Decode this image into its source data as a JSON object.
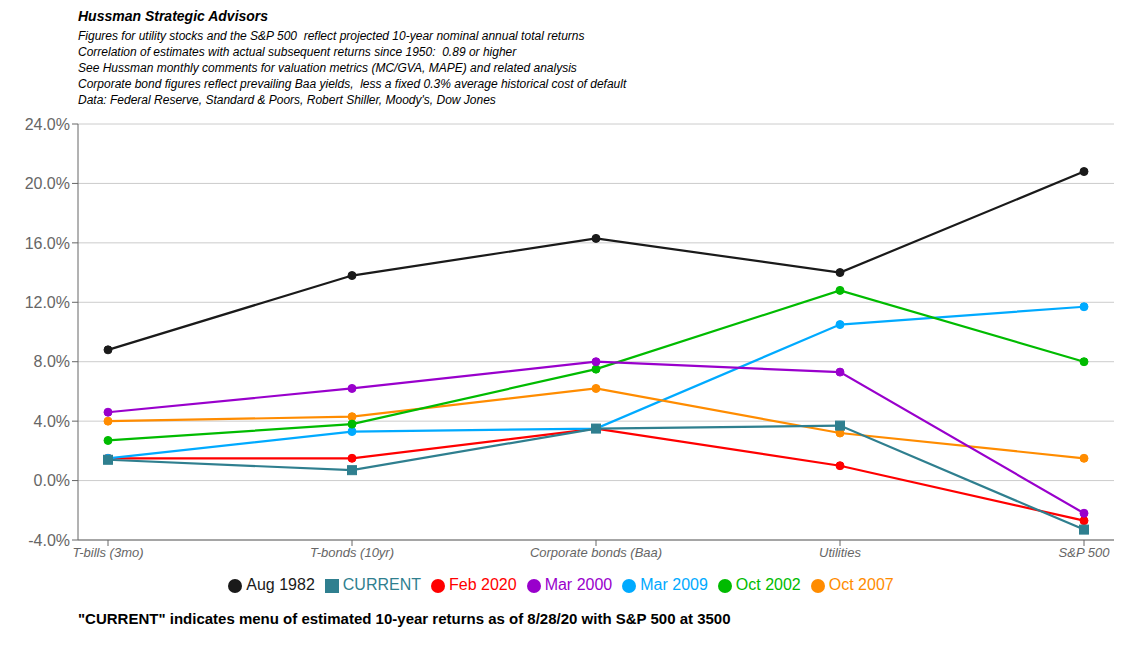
{
  "chart_data": {
    "type": "line",
    "title": "Hussman Strategic Advisors",
    "subtitle": [
      "Figures for utility stocks and the S&P 500  reflect projected 10-year nominal annual total returns",
      "Correlation of estimates with actual subsequent returns since 1950:  0.89 or higher",
      "See Hussman monthly comments for valuation metrics (MC/GVA, MAPE) and related analysis",
      "Corporate bond figures reflect prevailing Baa yields,  less a fixed 0.3% average historical cost of default",
      "Data: Federal Reserve, Standard & Poors, Robert Shiller, Moody's, Dow Jones"
    ],
    "annotations": [
      "\"CURRENT\" indicates menu of estimated 10-year returns as of 8/28/20 with S&P 500 at 3500"
    ],
    "categories": [
      "T-bills (3mo)",
      "T-bonds (10yr)",
      "Corporate bonds (Baa)",
      "Utilities",
      "S&P 500"
    ],
    "series": [
      {
        "name": "Feb 2020",
        "color": "#FF0000",
        "marker": "circle",
        "values": [
          0.015,
          0.015,
          0.035,
          0.01,
          -0.027
        ]
      },
      {
        "name": "Mar 2009",
        "color": "#00AAFF",
        "marker": "circle",
        "values": [
          0.015,
          0.033,
          0.035,
          0.105,
          0.117
        ]
      },
      {
        "name": "Oct 2007",
        "color": "#FF8C00",
        "marker": "circle",
        "values": [
          0.04,
          0.043,
          0.062,
          0.032,
          0.015
        ]
      },
      {
        "name": "Oct 2002",
        "color": "#00BB00",
        "marker": "circle",
        "values": [
          0.027,
          0.038,
          0.075,
          0.128,
          0.08
        ]
      },
      {
        "name": "Mar 2000",
        "color": "#9900CC",
        "marker": "circle",
        "values": [
          0.046,
          0.062,
          0.08,
          0.073,
          -0.022
        ]
      },
      {
        "name": "Aug 1982",
        "color": "#1A1A1A",
        "marker": "circle",
        "values": [
          0.088,
          0.138,
          0.163,
          0.14,
          0.208
        ]
      },
      {
        "name": "CURRENT",
        "color": "#2F7F8F",
        "marker": "square",
        "values": [
          0.014,
          0.007,
          0.035,
          0.037,
          -0.033
        ]
      }
    ],
    "ylim": [
      -0.04,
      0.24
    ],
    "yticks": [
      {
        "value": -0.04,
        "label": "-4.0%"
      },
      {
        "value": 0.0,
        "label": "0.0%"
      },
      {
        "value": 0.04,
        "label": "4.0%"
      },
      {
        "value": 0.08,
        "label": "8.0%"
      },
      {
        "value": 0.12,
        "label": "12.0%"
      },
      {
        "value": 0.16,
        "label": "16.0%"
      },
      {
        "value": 0.2,
        "label": "20.0%"
      },
      {
        "value": 0.24,
        "label": "24.0%"
      }
    ],
    "grid": true,
    "legend": "bottom"
  }
}
